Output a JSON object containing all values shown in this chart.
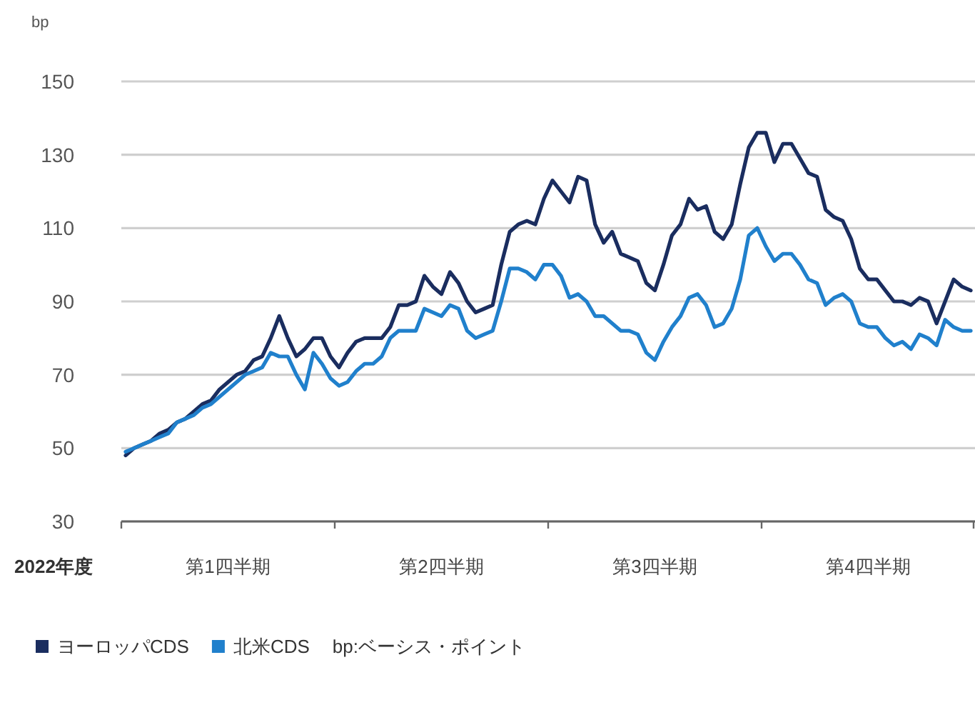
{
  "chart_data": {
    "type": "line",
    "ylabel": "bp",
    "xlabel": "2022年度",
    "ylim": [
      30,
      150
    ],
    "yticks": [
      30,
      50,
      70,
      90,
      110,
      130,
      150
    ],
    "categories": [
      null,
      null,
      null,
      null,
      null,
      null,
      null,
      null,
      null,
      null,
      null,
      null,
      "第1四半期",
      null,
      null,
      null,
      null,
      null,
      null,
      null,
      null,
      null,
      null,
      null,
      null,
      null,
      null,
      null,
      null,
      null,
      null,
      null,
      null,
      null,
      null,
      null,
      null,
      "第2四半期",
      null,
      null,
      null,
      null,
      null,
      null,
      null,
      null,
      null,
      null,
      null,
      null,
      null,
      null,
      null,
      null,
      null,
      null,
      null,
      null,
      null,
      null,
      null,
      null,
      "第3四半期",
      null,
      null,
      null,
      null,
      null,
      null,
      null,
      null,
      null,
      null,
      null,
      null,
      null,
      null,
      null,
      null,
      null,
      null,
      null,
      null,
      null,
      null,
      null,
      null,
      "第4四半期",
      null,
      null,
      null,
      null,
      null,
      null,
      null,
      null,
      null,
      null,
      null,
      null
    ],
    "grid": "y",
    "legend": "bottom",
    "annotations": [
      "bp:ベーシス・ポイント"
    ],
    "series": [
      {
        "name": "ヨーロッパCDS",
        "color": "#1a2d5f",
        "values": [
          48,
          50,
          51,
          52,
          54,
          55,
          57,
          58,
          60,
          62,
          63,
          66,
          68,
          70,
          71,
          74,
          75,
          80,
          86,
          80,
          75,
          77,
          80,
          80,
          75,
          72,
          76,
          79,
          80,
          80,
          80,
          83,
          89,
          89,
          90,
          97,
          94,
          92,
          98,
          95,
          90,
          87,
          88,
          89,
          100,
          109,
          111,
          112,
          111,
          118,
          123,
          120,
          117,
          124,
          123,
          111,
          106,
          109,
          103,
          102,
          101,
          95,
          93,
          100,
          108,
          111,
          118,
          115,
          116,
          109,
          107,
          111,
          122,
          132,
          136,
          136,
          128,
          133,
          133,
          129,
          125,
          124,
          115,
          113,
          112,
          107,
          99,
          96,
          96,
          93,
          90,
          90,
          89,
          91,
          90,
          84,
          90,
          96,
          94,
          93
        ]
      },
      {
        "name": "北米CDS",
        "color": "#2080cc",
        "values": [
          49,
          50,
          51,
          52,
          53,
          54,
          57,
          58,
          59,
          61,
          62,
          64,
          66,
          68,
          70,
          71,
          72,
          76,
          75,
          75,
          70,
          66,
          76,
          73,
          69,
          67,
          68,
          71,
          73,
          73,
          75,
          80,
          82,
          82,
          82,
          88,
          87,
          86,
          89,
          88,
          82,
          80,
          81,
          82,
          90,
          99,
          99,
          98,
          96,
          100,
          100,
          97,
          91,
          92,
          90,
          86,
          86,
          84,
          82,
          82,
          81,
          76,
          74,
          79,
          83,
          86,
          91,
          92,
          89,
          83,
          84,
          88,
          96,
          108,
          110,
          105,
          101,
          103,
          103,
          100,
          96,
          95,
          89,
          91,
          92,
          90,
          84,
          83,
          83,
          80,
          78,
          79,
          77,
          81,
          80,
          78,
          85,
          83,
          82,
          82
        ]
      }
    ]
  }
}
